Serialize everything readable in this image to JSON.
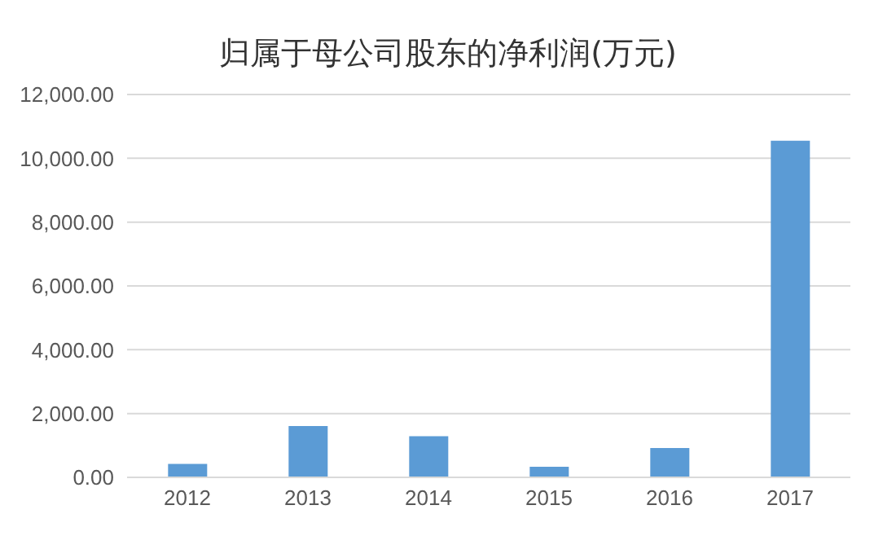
{
  "chart_data": {
    "type": "bar",
    "title": "归属于母公司股东的净利润(万元)",
    "categories": [
      "2012",
      "2013",
      "2014",
      "2015",
      "2016",
      "2017"
    ],
    "values": [
      420,
      1610,
      1290,
      330,
      920,
      10550
    ],
    "color": "#5b9bd5",
    "ylim": [
      0,
      12000
    ],
    "yticks": [
      {
        "value": 0,
        "label": "0.00"
      },
      {
        "value": 2000,
        "label": "2,000.00"
      },
      {
        "value": 4000,
        "label": "4,000.00"
      },
      {
        "value": 6000,
        "label": "6,000.00"
      },
      {
        "value": 8000,
        "label": "8,000.00"
      },
      {
        "value": 10000,
        "label": "10,000.00"
      },
      {
        "value": 12000,
        "label": "12,000.00"
      }
    ],
    "grid": "y"
  }
}
